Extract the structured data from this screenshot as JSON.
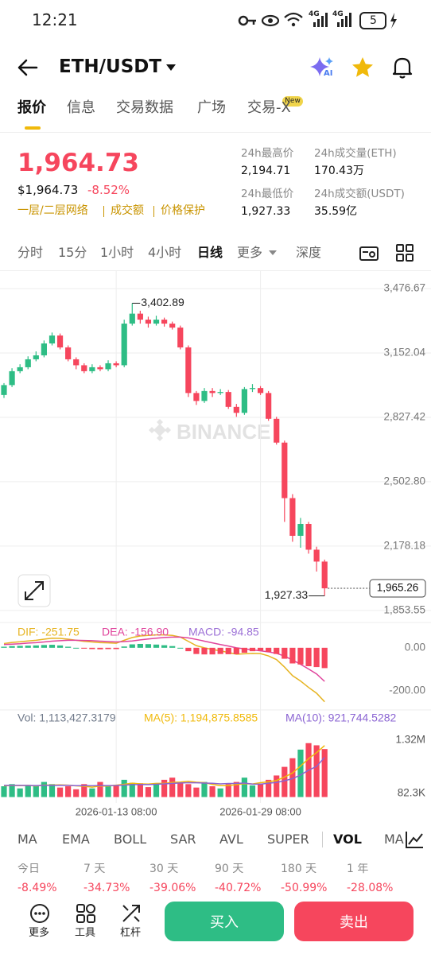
{
  "status_bar": {
    "time": "12:21",
    "network_1": "4G",
    "network_2": "4G",
    "battery": "5"
  },
  "header": {
    "pair": "ETH/USDT",
    "ai_badge": "AI"
  },
  "tabs": [
    "报价",
    "信息",
    "交易数据",
    "广场",
    "交易-X"
  ],
  "new_badge": "New",
  "ticker": {
    "price": "1,964.73",
    "usd_price": "$1,964.73",
    "change": "-8.52%",
    "links": [
      "一层/二层网络",
      "成交额",
      "价格保护"
    ],
    "stats": [
      {
        "label": "24h最高价",
        "value": "2,194.71"
      },
      {
        "label": "24h成交量(ETH)",
        "value": "170.43万"
      },
      {
        "label": "24h最低价",
        "value": "1,927.33"
      },
      {
        "label": "24h成交额(USDT)",
        "value": "35.59亿"
      }
    ]
  },
  "intervals": [
    "分时",
    "15分",
    "1小时",
    "4小时",
    "日线",
    "更多",
    "深度"
  ],
  "chart_data": [
    {
      "type": "candlestick",
      "watermark": "BINANCE",
      "categories": [
        null,
        null,
        null,
        null,
        null,
        null,
        null,
        null,
        null,
        null,
        null,
        null,
        null,
        null,
        "2026-01-13 08:00",
        null,
        null,
        null,
        null,
        null,
        null,
        null,
        null,
        null,
        null,
        null,
        null,
        null,
        null,
        null,
        null,
        null,
        "2026-01-29 08:00",
        null,
        null,
        null,
        null,
        null,
        null,
        null,
        null
      ],
      "open": [
        2940,
        2990,
        3060,
        3080,
        3120,
        3140,
        3200,
        3240,
        3180,
        3120,
        3090,
        3060,
        3080,
        3070,
        3100,
        3090,
        3300,
        3350,
        3320,
        3300,
        3320,
        3300,
        3280,
        3180,
        2950,
        2910,
        2960,
        2950,
        2955,
        2880,
        2850,
        2970,
        2975,
        2950,
        2820,
        2700,
        2420,
        2230,
        2290,
        2160,
        2100
      ],
      "high": [
        3000,
        3075,
        3095,
        3135,
        3160,
        3215,
        3255,
        3250,
        3190,
        3130,
        3100,
        3095,
        3090,
        3115,
        3110,
        3320,
        3402.89,
        3365,
        3335,
        3340,
        3330,
        3310,
        3290,
        3190,
        2960,
        2975,
        2975,
        2970,
        2965,
        2895,
        2980,
        2995,
        2985,
        2960,
        2830,
        2710,
        2440,
        2320,
        2300,
        2175,
        2110
      ],
      "low": [
        2925,
        2980,
        3050,
        3070,
        3110,
        3130,
        3190,
        3170,
        3110,
        3070,
        3050,
        3050,
        3060,
        3060,
        3080,
        3080,
        3290,
        3300,
        3280,
        3290,
        3285,
        3270,
        3170,
        2930,
        2890,
        2900,
        2930,
        2940,
        2870,
        2830,
        2840,
        2955,
        2940,
        2810,
        2690,
        2300,
        2200,
        2170,
        2140,
        2050,
        1927.33
      ],
      "close": [
        2990,
        3060,
        3080,
        3120,
        3140,
        3200,
        3240,
        3180,
        3120,
        3090,
        3060,
        3080,
        3070,
        3100,
        3090,
        3300,
        3350,
        3320,
        3300,
        3320,
        3300,
        3280,
        3180,
        2950,
        2910,
        2960,
        2950,
        2955,
        2880,
        2850,
        2970,
        2975,
        2950,
        2820,
        2700,
        2420,
        2230,
        2290,
        2160,
        2100,
        1965.26
      ],
      "up_color": "#2ebd85",
      "down_color": "#f6465d",
      "ylim": [
        1825,
        3548.8
      ],
      "yticks": [
        {
          "value": 3476.67,
          "label": "3,476.67"
        },
        {
          "value": 3152.04,
          "label": "3,152.04"
        },
        {
          "value": 2827.42,
          "label": "2,827.42"
        },
        {
          "value": 2502.8,
          "label": "2,502.80"
        },
        {
          "value": 2178.18,
          "label": "2,178.18"
        },
        {
          "value": 1853.55,
          "label": "1,853.55"
        }
      ],
      "grid": true,
      "max_label": {
        "value": 3402.89,
        "label": "3,402.89"
      },
      "min_label": {
        "value": 1927.33,
        "label": "1,927.33"
      },
      "last_label": {
        "value": 1965.26,
        "label": "1,965.26"
      }
    },
    {
      "type": "macd",
      "series": [
        {
          "name": "DIF: -251.75",
          "color": "#e6b422",
          "type": "line",
          "values": [
            20,
            25,
            28,
            32,
            35,
            40,
            45,
            44,
            40,
            35,
            30,
            27,
            24,
            23,
            21,
            35,
            48,
            55,
            58,
            60,
            60,
            58,
            50,
            30,
            10,
            0,
            -8,
            -14,
            -22,
            -30,
            -28,
            -26,
            -27,
            -38,
            -55,
            -90,
            -130,
            -155,
            -185,
            -212,
            -251.75
          ]
        },
        {
          "name": "DEA: -156.90",
          "color": "#e0449c",
          "type": "line",
          "values": [
            15,
            17,
            19,
            22,
            24,
            27,
            31,
            33,
            35,
            35,
            34,
            33,
            31,
            29,
            27,
            29,
            32,
            37,
            41,
            45,
            48,
            50,
            50,
            46,
            39,
            31,
            23,
            15,
            8,
            0,
            -5,
            -10,
            -14,
            -19,
            -26,
            -39,
            -57,
            -77,
            -99,
            -122,
            -156.9
          ]
        },
        {
          "name": "MACD: -94.85",
          "color": "#9b6fd6",
          "type": "bar",
          "values": [
            5,
            8,
            9,
            10,
            11,
            13,
            14,
            11,
            5,
            0,
            -4,
            -6,
            -7,
            -6,
            -6,
            6,
            16,
            18,
            17,
            15,
            12,
            8,
            0,
            -16,
            -29,
            -31,
            -31,
            -29,
            -30,
            -30,
            -23,
            -16,
            -13,
            -19,
            -29,
            -51,
            -73,
            -78,
            -86,
            -90,
            -94.85
          ]
        }
      ],
      "ylim": [
        -290,
        55
      ],
      "yticks": [
        {
          "value": 0,
          "label": "0.00"
        },
        {
          "value": -200,
          "label": "-200.00"
        }
      ]
    },
    {
      "type": "volume",
      "series": [
        {
          "name": "Vol: 1,113,427.3179",
          "color": "#707a8a",
          "type": "bar",
          "values": [
            250000,
            300000,
            200000,
            280000,
            260000,
            350000,
            300000,
            220000,
            250000,
            180000,
            300000,
            200000,
            350000,
            250000,
            280000,
            400000,
            330000,
            320000,
            230000,
            300000,
            400000,
            450000,
            350000,
            300000,
            220000,
            350000,
            250000,
            200000,
            300000,
            350000,
            450000,
            270000,
            300000,
            400000,
            500000,
            700000,
            900000,
            1100000,
            1250000,
            1200000,
            1113427.3179
          ]
        },
        {
          "name": "MA(5): 1,194,875.8585",
          "color": "#f0b90b",
          "type": "line",
          "values": [
            260000,
            270000,
            265000,
            270000,
            258000,
            278000,
            278000,
            282000,
            276000,
            260000,
            250000,
            230000,
            256000,
            256000,
            276000,
            296000,
            322000,
            306000,
            302000,
            316000,
            316000,
            340000,
            346000,
            366000,
            344000,
            334000,
            294000,
            264000,
            264000,
            290000,
            310000,
            304000,
            334000,
            354000,
            384000,
            464000,
            560000,
            720000,
            890000,
            1030000,
            1194875.8585
          ]
        },
        {
          "name": "MA(10): 921,744.5282",
          "color": "#8a63d2",
          "type": "line",
          "values": [
            270000,
            272000,
            270000,
            268000,
            266000,
            270000,
            272000,
            274000,
            270000,
            265000,
            264000,
            262000,
            266000,
            266000,
            268000,
            278000,
            286000,
            292000,
            290000,
            296000,
            306000,
            318000,
            326000,
            334000,
            330000,
            325000,
            320000,
            305000,
            315000,
            317000,
            325000,
            300000,
            299000,
            322000,
            337000,
            377000,
            427000,
            512000,
            622000,
            710000,
            921744.5282
          ]
        }
      ],
      "ylim": [
        -100000,
        1430000
      ],
      "yticks": [
        {
          "value": 1320000,
          "label": "1.32M"
        },
        {
          "value": 82300,
          "label": "82.3K"
        }
      ]
    }
  ],
  "indicators": [
    "MA",
    "EMA",
    "BOLL",
    "SAR",
    "AVL",
    "SUPER",
    "VOL",
    "MA"
  ],
  "periods": [
    {
      "label": "今日",
      "change": "-8.49%"
    },
    {
      "label": "7 天",
      "change": "-34.73%"
    },
    {
      "label": "30 天",
      "change": "-39.06%"
    },
    {
      "label": "90 天",
      "change": "-40.72%"
    },
    {
      "label": "180 天",
      "change": "-50.99%"
    },
    {
      "label": "1 年",
      "change": "-28.08%"
    }
  ],
  "bottom_bar": {
    "items": [
      "更多",
      "工具",
      "杠杆"
    ],
    "buy": "买入",
    "sell": "卖出"
  }
}
